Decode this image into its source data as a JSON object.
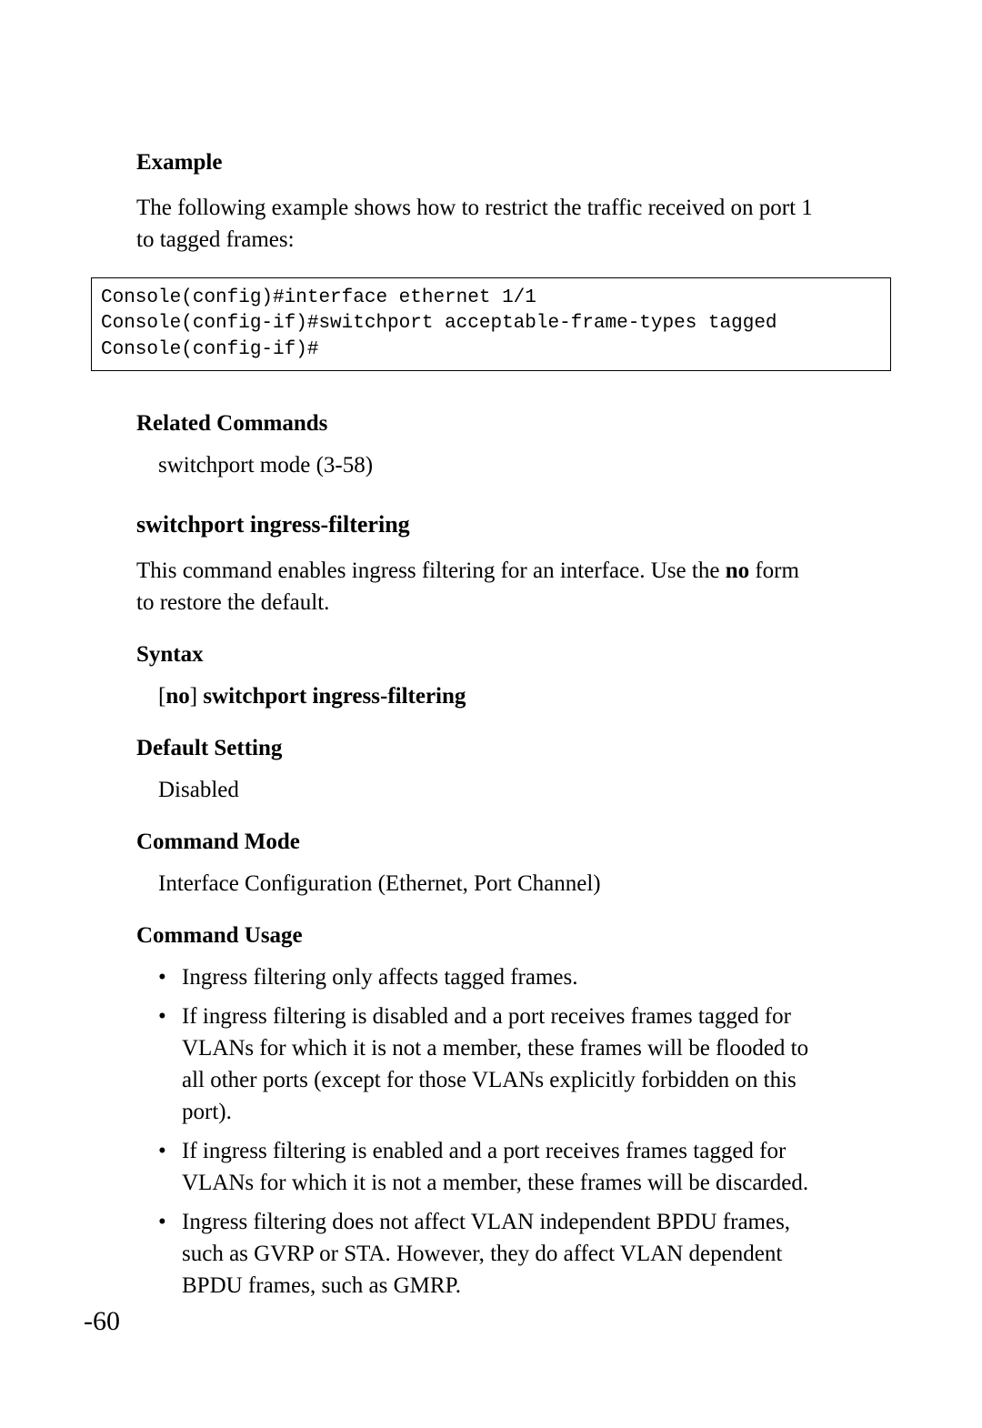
{
  "example": {
    "heading": "Example",
    "intro": "The following example shows how to restrict the traffic received on port 1 to tagged frames:",
    "code": "Console(config)#interface ethernet 1/1\nConsole(config-if)#switchport acceptable-frame-types tagged\nConsole(config-if)#"
  },
  "related": {
    "heading": "Related Commands",
    "item": "switchport mode (3-58)"
  },
  "command": {
    "title": "switchport ingress-filtering",
    "desc_pre": "This command enables ingress filtering for an interface. Use the ",
    "desc_bold": "no",
    "desc_post": " form to restore the default."
  },
  "syntax": {
    "heading": "Syntax",
    "line_prefix": "[",
    "line_bold1": "no",
    "line_mid": "] ",
    "line_bold2": "switchport ingress-filtering"
  },
  "default_setting": {
    "heading": "Default Setting",
    "value": "Disabled"
  },
  "command_mode": {
    "heading": "Command Mode",
    "value": "Interface Configuration (Ethernet, Port Channel)"
  },
  "command_usage": {
    "heading": "Command Usage",
    "items": [
      "Ingress filtering only affects tagged frames.",
      "If ingress filtering is disabled and a port receives frames tagged for VLANs for which it is not a member, these frames will be flooded to all other ports (except for those VLANs explicitly forbidden on this port).",
      "If ingress filtering is enabled and a port receives frames tagged for VLANs for which it is not a member, these frames will be discarded.",
      "Ingress filtering does not affect VLAN independent BPDU frames, such as GVRP or STA. However, they do affect VLAN dependent BPDU frames, such as GMRP."
    ]
  },
  "page_number": "-60"
}
